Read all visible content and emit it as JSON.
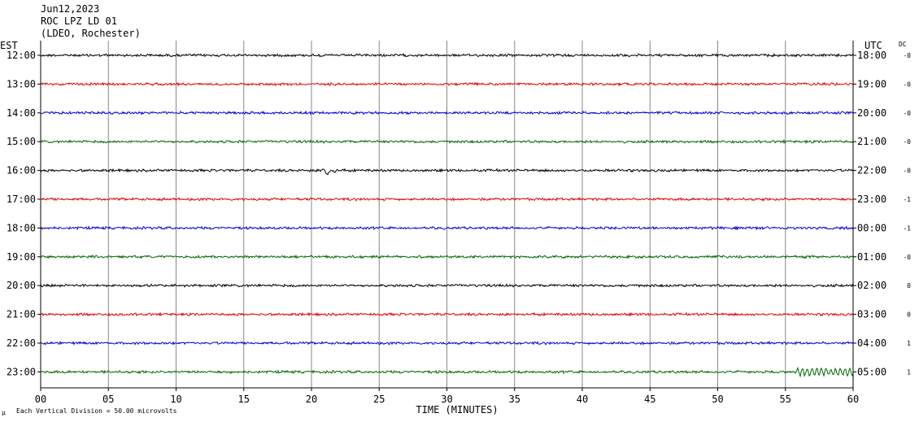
{
  "header": {
    "date": "Jun12,2023",
    "station": "ROC LPZ LD 01",
    "network": "(LDEO, Rochester)"
  },
  "left_axis_label": "EST",
  "right_axis_label": "UTC",
  "dc_label": "DC",
  "footer": {
    "note": "Each Vertical Division =   50.00 microvolts",
    "mark": "µ"
  },
  "colors": {
    "black": "#000000",
    "red": "#dd0000",
    "blue": "#0000cc",
    "green": "#006600",
    "grid": "#888888"
  },
  "chart_data": {
    "type": "line",
    "xlabel": "TIME (MINUTES)",
    "x_ticks": [
      "00",
      "05",
      "10",
      "15",
      "20",
      "25",
      "30",
      "35",
      "40",
      "45",
      "50",
      "55",
      "60"
    ],
    "xlim": [
      0,
      60
    ],
    "grid_vertical_every_minutes": 5,
    "series": [
      {
        "est": "12:00",
        "utc": "18:00",
        "dc": "-0",
        "color": "#000000",
        "events": []
      },
      {
        "est": "13:00",
        "utc": "19:00",
        "dc": "-0",
        "color": "#dd0000",
        "events": []
      },
      {
        "est": "14:00",
        "utc": "20:00",
        "dc": "-0",
        "color": "#0000cc",
        "events": []
      },
      {
        "est": "15:00",
        "utc": "21:00",
        "dc": "-0",
        "color": "#006600",
        "events": []
      },
      {
        "est": "16:00",
        "utc": "22:00",
        "dc": "-0",
        "color": "#000000",
        "events": [
          {
            "minute": 21,
            "kind": "spike"
          }
        ]
      },
      {
        "est": "17:00",
        "utc": "23:00",
        "dc": "-1",
        "color": "#dd0000",
        "events": []
      },
      {
        "est": "18:00",
        "utc": "00:00",
        "dc": "-1",
        "color": "#0000cc",
        "events": []
      },
      {
        "est": "19:00",
        "utc": "01:00",
        "dc": "-0",
        "color": "#006600",
        "events": []
      },
      {
        "est": "20:00",
        "utc": "02:00",
        "dc": "0",
        "color": "#000000",
        "events": []
      },
      {
        "est": "21:00",
        "utc": "03:00",
        "dc": "0",
        "color": "#dd0000",
        "events": []
      },
      {
        "est": "22:00",
        "utc": "04:00",
        "dc": "1",
        "color": "#0000cc",
        "events": []
      },
      {
        "est": "23:00",
        "utc": "05:00",
        "dc": "1",
        "color": "#006600",
        "events": [
          {
            "minute": 55.3,
            "kind": "wave"
          }
        ]
      }
    ]
  }
}
